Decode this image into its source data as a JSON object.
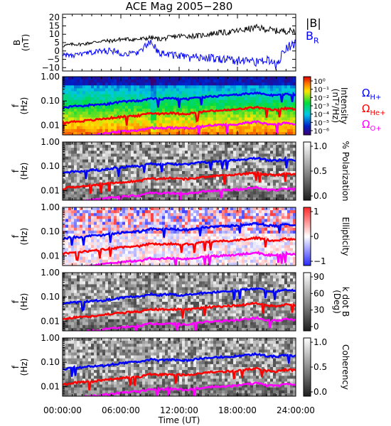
{
  "title": "ACE Mag 2005−280",
  "xaxis": {
    "label": "Time (UT)",
    "ticks": [
      "00:00:00",
      "06:00:00",
      "12:00:00",
      "18:00:00",
      "24:00:00"
    ],
    "tick_values_hours": [
      0,
      6,
      12,
      18,
      24
    ],
    "range_hours": [
      0,
      24
    ]
  },
  "colors": {
    "b_total": "#000000",
    "b_r": "#0000ff",
    "omega_h": "#0000ff",
    "omega_he": "#ff0000",
    "omega_o": "#ff00ff"
  },
  "chart_data": [
    {
      "type": "line",
      "ylabel_lines": [
        "B",
        "(nT)"
      ],
      "ylim": [
        -12,
        22
      ],
      "yticks": [
        -10,
        -5,
        0,
        5,
        10,
        15,
        20
      ],
      "ytick_labels": [
        "−10",
        "−5",
        "0",
        "5",
        "10",
        "15",
        "20"
      ],
      "x": [
        0,
        1,
        2,
        3,
        4,
        5,
        6,
        7,
        8,
        9,
        10,
        11,
        12,
        13,
        14,
        15,
        16,
        17,
        18,
        19,
        20,
        21,
        22,
        23,
        24
      ],
      "series": [
        {
          "name": "|B|",
          "color": "#000000",
          "values": [
            3,
            4,
            4,
            5,
            6,
            6,
            7,
            7,
            7,
            8,
            7,
            8,
            9,
            9,
            9,
            10,
            11,
            11,
            12,
            13,
            14,
            13,
            12,
            12,
            12
          ]
        },
        {
          "name": "B_R",
          "color": "#0000ff",
          "values": [
            -2,
            -3,
            -2,
            -1,
            0,
            0,
            -1,
            -2,
            0,
            5,
            -1,
            -2,
            -3,
            -4,
            -4,
            -4,
            -5,
            -5,
            -6,
            -5,
            -7,
            -5,
            -9,
            2,
            5
          ]
        }
      ],
      "legend": [
        "|B|",
        "B_R"
      ]
    },
    {
      "type": "heatmap",
      "ylabel_lines": [
        "f",
        "(Hz)"
      ],
      "ylim": [
        0.004,
        1.0
      ],
      "yscale": "log",
      "yticks": [
        1.0,
        0.1,
        0.01
      ],
      "ytick_labels": [
        "1.00",
        "0.10",
        "0.01"
      ],
      "colorbar": {
        "label_lines": [
          "Intensity",
          "(nT²/Hz)"
        ],
        "scale": "log",
        "ticks": [
          "10⁰",
          "10⁻¹",
          "10⁻²",
          "10⁻³",
          "10⁻⁴",
          "10⁻⁵",
          "10⁻⁶"
        ],
        "colormap": "rainbow"
      },
      "annotations": [
        "ΩH+",
        "ΩHe+",
        "ΩO+"
      ]
    },
    {
      "type": "heatmap",
      "ylabel_lines": [
        "f",
        "(Hz)"
      ],
      "ylim": [
        0.004,
        1.0
      ],
      "yscale": "log",
      "yticks": [
        1.0,
        0.1,
        0.01
      ],
      "ytick_labels": [
        "1.00",
        "0.10",
        "0.01"
      ],
      "colorbar": {
        "label_lines": [
          "% Polarization"
        ],
        "scale": "linear",
        "ticks": [
          "1.0",
          "0.5",
          "0.0"
        ],
        "colormap": "grayscale"
      }
    },
    {
      "type": "heatmap",
      "ylabel_lines": [
        "f",
        "(Hz)"
      ],
      "ylim": [
        0.004,
        1.0
      ],
      "yscale": "log",
      "yticks": [
        1.0,
        0.1,
        0.01
      ],
      "ytick_labels": [
        "1.00",
        "0.10",
        "0.01"
      ],
      "colorbar": {
        "label_lines": [
          "Ellipticity"
        ],
        "scale": "linear",
        "ticks": [
          "1",
          "0",
          "−1"
        ],
        "colormap": "blue-white-red"
      }
    },
    {
      "type": "heatmap",
      "ylabel_lines": [
        "f",
        "(Hz)"
      ],
      "ylim": [
        0.004,
        1.0
      ],
      "yscale": "log",
      "yticks": [
        1.0,
        0.1,
        0.01
      ],
      "ytick_labels": [
        "1.00",
        "0.10",
        "0.01"
      ],
      "colorbar": {
        "label_lines": [
          "k dot B",
          "(Deg)"
        ],
        "scale": "linear",
        "ticks": [
          "90",
          "60",
          "30",
          "0"
        ],
        "colormap": "grayscale"
      }
    },
    {
      "type": "heatmap",
      "ylabel_lines": [
        "f",
        "(Hz)"
      ],
      "ylim": [
        0.004,
        1.0
      ],
      "yscale": "log",
      "yticks": [
        1.0,
        0.1,
        0.01
      ],
      "ytick_labels": [
        "1.00",
        "0.10",
        "0.01"
      ],
      "colorbar": {
        "label_lines": [
          "Coherency"
        ],
        "scale": "linear",
        "ticks": [
          "1.0",
          "0.5",
          "0.0"
        ],
        "colormap": "grayscale"
      }
    }
  ],
  "gyrofrequency_lines": {
    "x_hours": [
      0,
      1,
      2,
      3,
      4,
      5,
      6,
      7,
      8,
      9,
      10,
      11,
      12,
      13,
      14,
      15,
      16,
      17,
      18,
      19,
      20,
      21,
      22,
      23,
      24
    ],
    "omega_h_hz": [
      0.05,
      0.06,
      0.06,
      0.07,
      0.07,
      0.08,
      0.09,
      0.1,
      0.1,
      0.13,
      0.12,
      0.13,
      0.12,
      0.12,
      0.14,
      0.15,
      0.16,
      0.17,
      0.18,
      0.2,
      0.22,
      0.18,
      0.17,
      0.2,
      0.18
    ],
    "omega_he_hz": [
      0.012,
      0.014,
      0.015,
      0.016,
      0.018,
      0.02,
      0.022,
      0.024,
      0.025,
      0.032,
      0.03,
      0.032,
      0.03,
      0.03,
      0.034,
      0.038,
      0.04,
      0.042,
      0.045,
      0.05,
      0.055,
      0.045,
      0.042,
      0.05,
      0.045
    ],
    "omega_o_hz": [
      0.003,
      0.0035,
      0.0037,
      0.004,
      0.0045,
      0.005,
      0.0055,
      0.006,
      0.0062,
      0.008,
      0.0075,
      0.008,
      0.0075,
      0.0075,
      0.0085,
      0.0095,
      0.01,
      0.0105,
      0.011,
      0.0125,
      0.0137,
      0.011,
      0.0105,
      0.0125,
      0.011
    ]
  }
}
